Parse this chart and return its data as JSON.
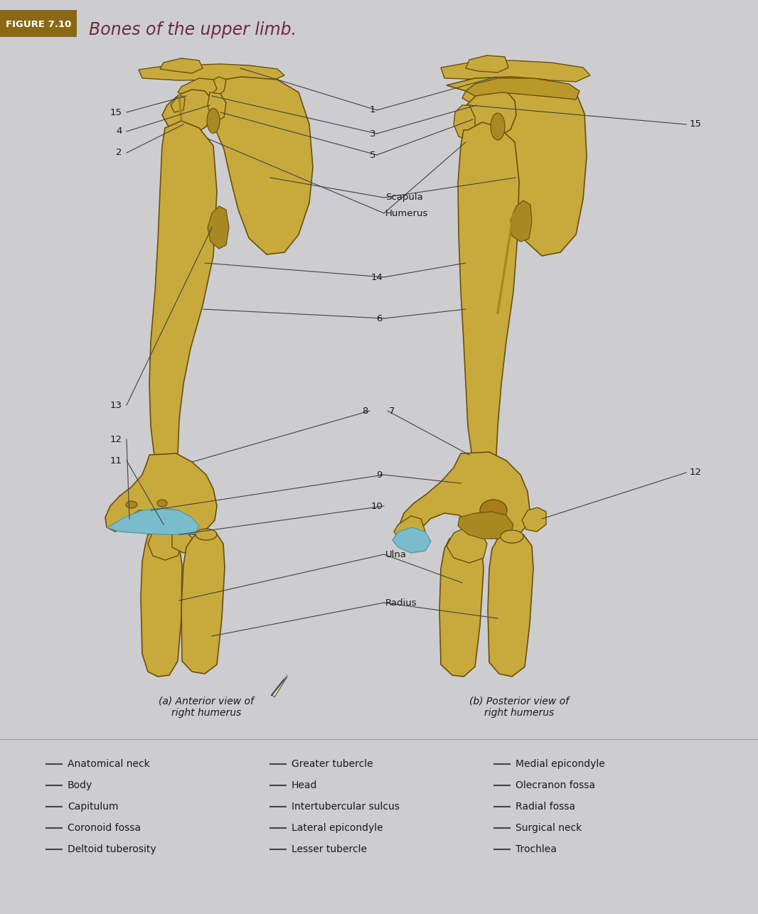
{
  "title": "Bones of the upper limb.",
  "figure_label": "FIGURE 7.10",
  "bg_color": "#cdcdd0",
  "title_color": "#6b2d3e",
  "figure_label_bg": "#8b6914",
  "figure_label_text": "#ffffff",
  "line_color": "#444444",
  "bone_color": "#c8aa3c",
  "bone_outline": "#6a5010",
  "bone_shadow": "#a88820",
  "blue_color": "#7abccc",
  "blue_dark": "#5a9aaa",
  "text_color": "#1a1a1a",
  "subtitle_a": "(a) Anterior view of\nright humerus",
  "subtitle_b": "(b) Posterior view of\nright humerus",
  "legend_col1": [
    "Anatomical neck",
    "Body",
    "Capitulum",
    "Coronoid fossa",
    "Deltoid tuberosity"
  ],
  "legend_col2": [
    "Greater tubercle",
    "Head",
    "Intertubercular sulcus",
    "Lateral epicondyle",
    "Lesser tubercle"
  ],
  "legend_col3": [
    "Medial epicondyle",
    "Olecranon fossa",
    "Radial fossa",
    "Surgical neck",
    "Trochlea"
  ]
}
